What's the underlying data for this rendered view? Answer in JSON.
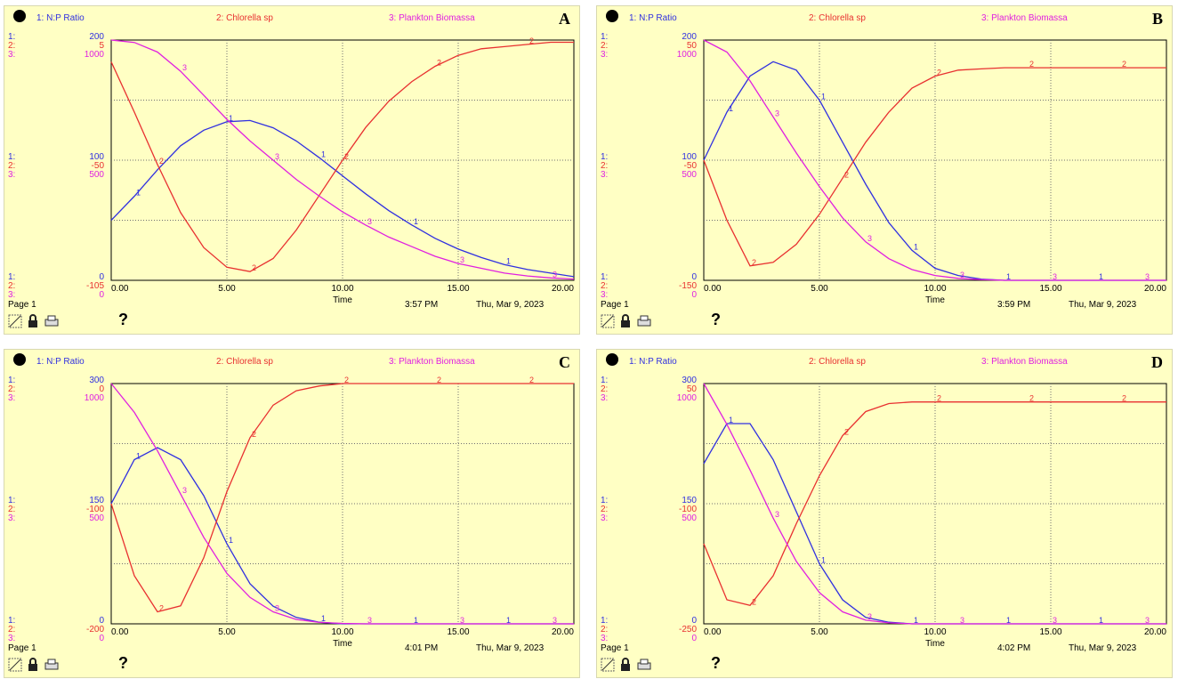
{
  "colors": {
    "s1": "#3030e0",
    "s2": "#e83030",
    "s3": "#e020e0",
    "grid": "#707070",
    "bg": "#ffffc4"
  },
  "chart_data": [
    {
      "type": "line",
      "panel_label": "A",
      "legend": [
        "1: N:P Ratio",
        "2: Chlorella sp",
        "3: Plankton Biomassa"
      ],
      "axis_prefixes": [
        "1:",
        "2:",
        "3:"
      ],
      "scales": {
        "top": [
          "200",
          "5",
          "1000"
        ],
        "mid": [
          "100",
          "-50",
          "500"
        ],
        "bottom": [
          "0",
          "-105",
          "0"
        ]
      },
      "xlabel": "Time",
      "x_ticks": [
        "0.00",
        "5.00",
        "10.00",
        "15.00",
        "20.00"
      ],
      "xlim": [
        0,
        20
      ],
      "footer": {
        "page": "Page 1",
        "time": "3:57 PM",
        "date": "Thu, Mar 9, 2023"
      },
      "series": [
        {
          "name": "N:P Ratio",
          "ylim": [
            0,
            200
          ],
          "x": [
            0,
            1,
            2,
            3,
            4,
            5,
            6,
            7,
            8,
            9,
            10,
            11,
            12,
            13,
            14,
            15,
            16,
            17,
            18,
            19,
            20
          ],
          "values": [
            50,
            70,
            92,
            112,
            125,
            132,
            133,
            127,
            116,
            102,
            87,
            72,
            58,
            46,
            35,
            26,
            19,
            13,
            9,
            6,
            3
          ]
        },
        {
          "name": "Chlorella sp",
          "ylim": [
            -105,
            5
          ],
          "x": [
            0,
            1,
            2,
            3,
            4,
            5,
            6,
            7,
            8,
            9,
            10,
            11,
            12,
            13,
            14,
            15,
            16,
            17,
            18,
            19,
            20
          ],
          "values": [
            -5,
            -28,
            -52,
            -74,
            -90,
            -99,
            -101,
            -95,
            -82,
            -66,
            -50,
            -35,
            -23,
            -14,
            -7,
            -2,
            1,
            2,
            3,
            4,
            4
          ]
        },
        {
          "name": "Plankton Biomassa",
          "ylim": [
            0,
            1000
          ],
          "x": [
            0,
            1,
            2,
            3,
            4,
            5,
            6,
            7,
            8,
            9,
            10,
            11,
            12,
            13,
            14,
            15,
            16,
            17,
            18,
            19,
            20
          ],
          "values": [
            1000,
            990,
            950,
            870,
            770,
            670,
            580,
            500,
            420,
            350,
            285,
            230,
            180,
            140,
            100,
            70,
            50,
            30,
            18,
            10,
            5
          ]
        }
      ]
    },
    {
      "type": "line",
      "panel_label": "B",
      "legend": [
        "1: N:P Ratio",
        "2: Chlorella sp",
        "3: Plankton Biomassa"
      ],
      "axis_prefixes": [
        "1:",
        "2:",
        "3:"
      ],
      "scales": {
        "top": [
          "200",
          "50",
          "1000"
        ],
        "mid": [
          "100",
          "-50",
          "500"
        ],
        "bottom": [
          "0",
          "-150",
          "0"
        ]
      },
      "xlabel": "Time",
      "x_ticks": [
        "0.00",
        "5.00",
        "10.00",
        "15.00",
        "20.00"
      ],
      "xlim": [
        0,
        20
      ],
      "footer": {
        "page": "Page 1",
        "time": "3:59 PM",
        "date": "Thu, Mar 9, 2023"
      },
      "series": [
        {
          "name": "N:P Ratio",
          "ylim": [
            0,
            200
          ],
          "x": [
            0,
            1,
            2,
            3,
            4,
            5,
            6,
            7,
            8,
            9,
            10,
            11,
            12,
            13,
            14,
            15,
            16,
            17,
            18,
            19,
            20
          ],
          "values": [
            100,
            140,
            170,
            182,
            175,
            150,
            115,
            80,
            48,
            25,
            10,
            4,
            1,
            0,
            0,
            0,
            0,
            0,
            0,
            0,
            0
          ]
        },
        {
          "name": "Chlorella sp",
          "ylim": [
            -150,
            50
          ],
          "x": [
            0,
            1,
            2,
            3,
            4,
            5,
            6,
            7,
            8,
            9,
            10,
            11,
            12,
            13,
            14,
            15,
            16,
            17,
            18,
            19,
            20
          ],
          "values": [
            -50,
            -100,
            -138,
            -135,
            -120,
            -95,
            -65,
            -35,
            -10,
            10,
            20,
            25,
            26,
            27,
            27,
            27,
            27,
            27,
            27,
            27,
            27
          ]
        },
        {
          "name": "Plankton Biomassa",
          "ylim": [
            0,
            1000
          ],
          "x": [
            0,
            1,
            2,
            3,
            4,
            5,
            6,
            7,
            8,
            9,
            10,
            11,
            12,
            13,
            14,
            15,
            16,
            17,
            18,
            19,
            20
          ],
          "values": [
            1000,
            950,
            830,
            680,
            530,
            390,
            260,
            160,
            90,
            45,
            20,
            8,
            3,
            0,
            0,
            0,
            0,
            0,
            0,
            0,
            0
          ]
        }
      ]
    },
    {
      "type": "line",
      "panel_label": "C",
      "legend": [
        "1: N:P Ratio",
        "2: Chlorella sp",
        "3: Plankton Biomassa"
      ],
      "axis_prefixes": [
        "1:",
        "2:",
        "3:"
      ],
      "scales": {
        "top": [
          "300",
          "0",
          "1000"
        ],
        "mid": [
          "150",
          "-100",
          "500"
        ],
        "bottom": [
          "0",
          "-200",
          "0"
        ]
      },
      "xlabel": "Time",
      "x_ticks": [
        "0.00",
        "5.00",
        "10.00",
        "15.00",
        "20.00"
      ],
      "xlim": [
        0,
        20
      ],
      "footer": {
        "page": "Page 1",
        "time": "4:01 PM",
        "date": "Thu, Mar 9, 2023"
      },
      "series": [
        {
          "name": "N:P Ratio",
          "ylim": [
            0,
            300
          ],
          "x": [
            0,
            1,
            2,
            3,
            4,
            5,
            6,
            7,
            8,
            9,
            10,
            11,
            12,
            13,
            14,
            15,
            16,
            17,
            18,
            19,
            20
          ],
          "values": [
            150,
            205,
            220,
            205,
            160,
            100,
            50,
            22,
            8,
            2,
            0,
            0,
            0,
            0,
            0,
            0,
            0,
            0,
            0,
            0,
            0
          ]
        },
        {
          "name": "Chlorella sp",
          "ylim": [
            -200,
            0
          ],
          "x": [
            0,
            1,
            2,
            3,
            4,
            5,
            6,
            7,
            8,
            9,
            10,
            11,
            12,
            13,
            14,
            15,
            16,
            17,
            18,
            19,
            20
          ],
          "values": [
            -100,
            -160,
            -190,
            -185,
            -145,
            -90,
            -45,
            -18,
            -6,
            -2,
            0,
            0,
            0,
            0,
            0,
            0,
            0,
            0,
            0,
            0,
            0
          ]
        },
        {
          "name": "Plankton Biomassa",
          "ylim": [
            0,
            1000
          ],
          "x": [
            0,
            1,
            2,
            3,
            4,
            5,
            6,
            7,
            8,
            9,
            10,
            11,
            12,
            13,
            14,
            15,
            16,
            17,
            18,
            19,
            20
          ],
          "values": [
            1000,
            880,
            720,
            540,
            360,
            210,
            110,
            50,
            18,
            6,
            2,
            0,
            0,
            0,
            0,
            0,
            0,
            0,
            0,
            0,
            0
          ]
        }
      ]
    },
    {
      "type": "line",
      "panel_label": "D",
      "legend": [
        "1: N:P Ratio",
        "2: Chlorella sp",
        "3: Plankton Biomassa"
      ],
      "axis_prefixes": [
        "1:",
        "2:",
        "3:"
      ],
      "scales": {
        "top": [
          "300",
          "50",
          "1000"
        ],
        "mid": [
          "150",
          "-100",
          "500"
        ],
        "bottom": [
          "0",
          "-250",
          "0"
        ]
      },
      "xlabel": "Time",
      "x_ticks": [
        "0.00",
        "5.00",
        "10.00",
        "15.00",
        "20.00"
      ],
      "xlim": [
        0,
        20
      ],
      "footer": {
        "page": "Page 1",
        "time": "4:02 PM",
        "date": "Thu, Mar 9, 2023"
      },
      "series": [
        {
          "name": "N:P Ratio",
          "ylim": [
            0,
            300
          ],
          "x": [
            0,
            1,
            2,
            3,
            4,
            5,
            6,
            7,
            8,
            9,
            10,
            11,
            12,
            13,
            14,
            15,
            16,
            17,
            18,
            19,
            20
          ],
          "values": [
            200,
            250,
            250,
            205,
            140,
            75,
            30,
            8,
            2,
            0,
            0,
            0,
            0,
            0,
            0,
            0,
            0,
            0,
            0,
            0,
            0
          ]
        },
        {
          "name": "Chlorella sp",
          "ylim": [
            -250,
            50
          ],
          "x": [
            0,
            1,
            2,
            3,
            4,
            5,
            6,
            7,
            8,
            9,
            10,
            11,
            12,
            13,
            14,
            15,
            16,
            17,
            18,
            19,
            20
          ],
          "values": [
            -150,
            -220,
            -227,
            -190,
            -125,
            -65,
            -15,
            15,
            25,
            27,
            27,
            27,
            27,
            27,
            27,
            27,
            27,
            27,
            27,
            27,
            27
          ]
        },
        {
          "name": "Plankton Biomassa",
          "ylim": [
            0,
            1000
          ],
          "x": [
            0,
            1,
            2,
            3,
            4,
            5,
            6,
            7,
            8,
            9,
            10,
            11,
            12,
            13,
            14,
            15,
            16,
            17,
            18,
            19,
            20
          ],
          "values": [
            1000,
            830,
            640,
            440,
            260,
            130,
            50,
            15,
            4,
            0,
            0,
            0,
            0,
            0,
            0,
            0,
            0,
            0,
            0,
            0,
            0
          ]
        }
      ]
    }
  ],
  "toolbar": {
    "help_label": "?",
    "icons": [
      "pin-tool-icon",
      "lock-icon",
      "print-icon"
    ]
  }
}
